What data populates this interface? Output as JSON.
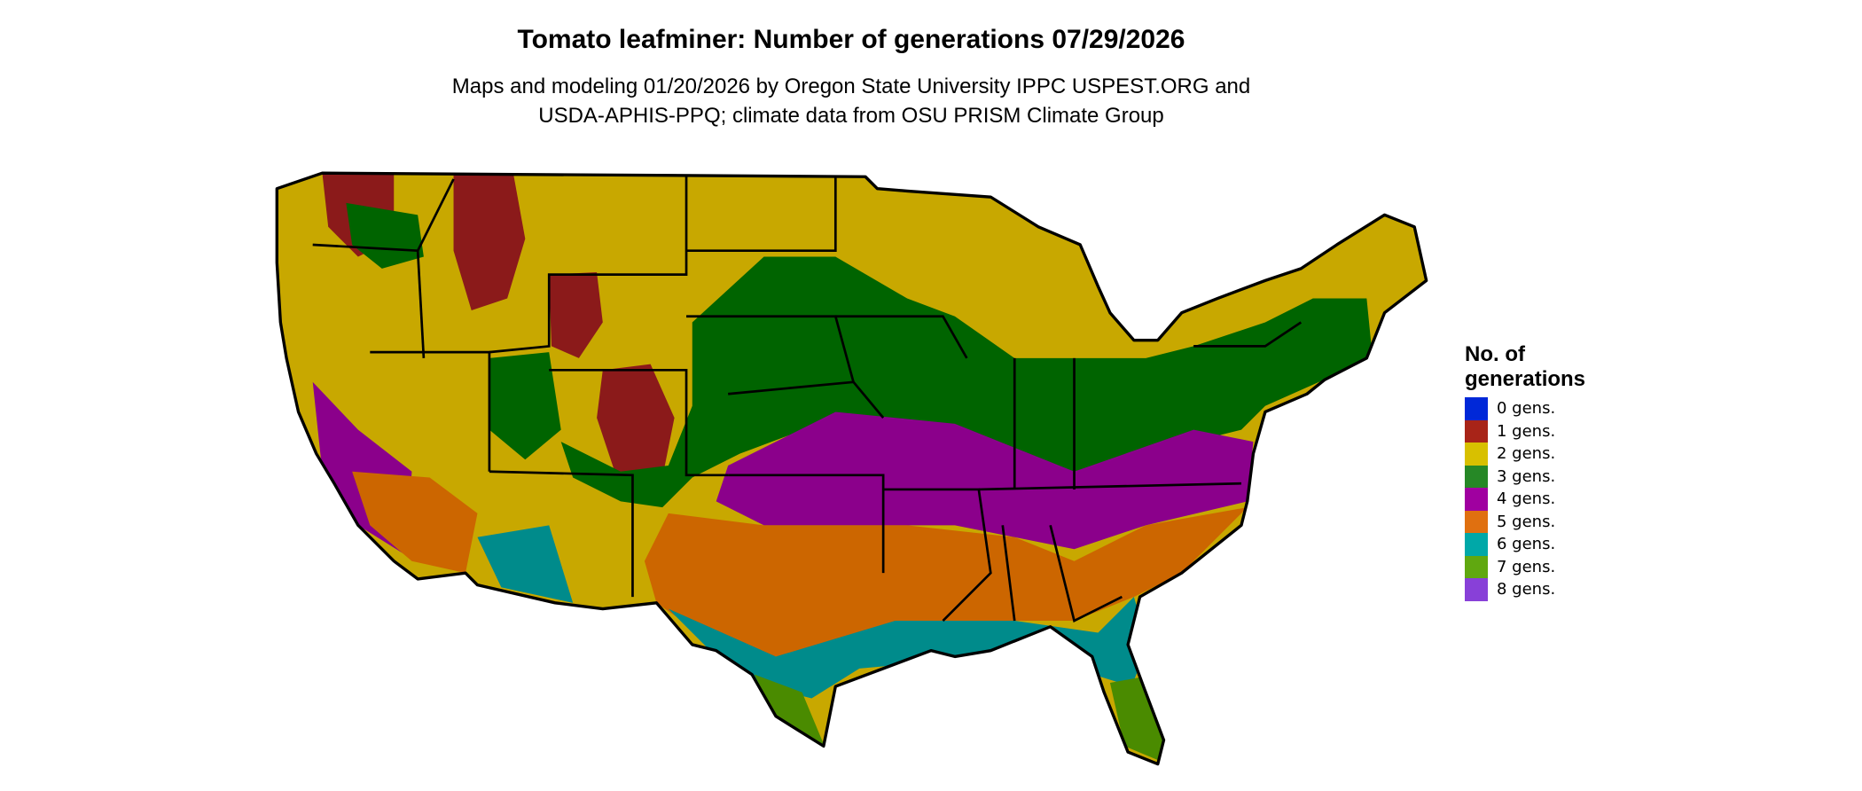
{
  "title": "Tomato leafminer: Number of generations 07/29/2026",
  "subtitle_lines": [
    "Maps and modeling 01/20/2026 by Oregon State University IPPC USPEST.ORG and",
    "USDA-APHIS-PPQ; climate data from OSU PRISM Climate Group"
  ],
  "legend": {
    "title_lines": [
      "No. of",
      "generations"
    ],
    "items": [
      {
        "label": "0 gens.",
        "color": "#0028d8"
      },
      {
        "label": "1 gens.",
        "color": "#a82418"
      },
      {
        "label": "2 gens.",
        "color": "#d8c000"
      },
      {
        "label": "3 gens.",
        "color": "#268826"
      },
      {
        "label": "4 gens.",
        "color": "#a000a0"
      },
      {
        "label": "5 gens.",
        "color": "#e07010"
      },
      {
        "label": "6 gens.",
        "color": "#00a8a8"
      },
      {
        "label": "7 gens.",
        "color": "#60a810"
      },
      {
        "label": "8 gens.",
        "color": "#8840d8"
      }
    ]
  },
  "map_colors": {
    "gen1": "#8b1a1a",
    "gen2": "#c8a800",
    "gen3": "#006400",
    "gen4": "#8b008b",
    "gen5": "#cc6600",
    "gen6": "#008b8b",
    "gen7": "#4a8b00",
    "gen8": "#8a3ad8",
    "border": "#000000"
  }
}
